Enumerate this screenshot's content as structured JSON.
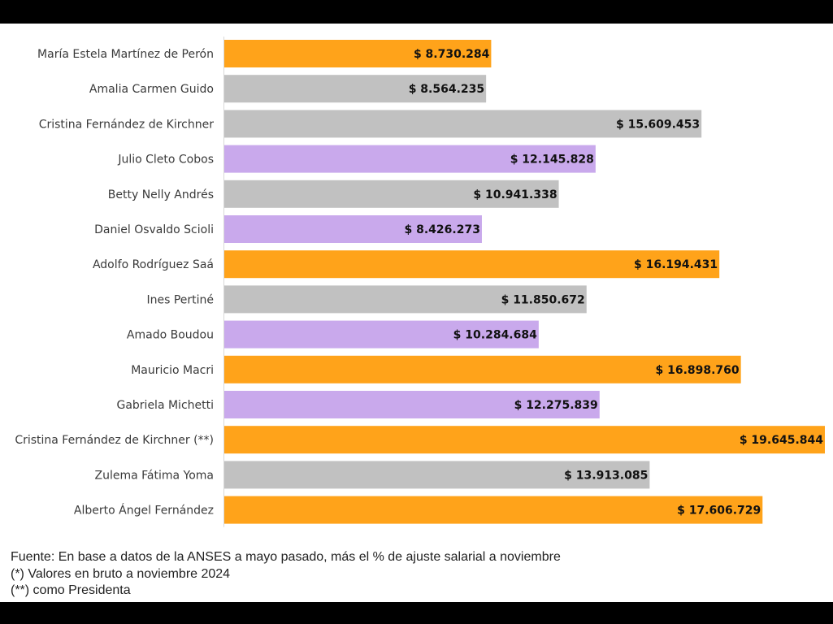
{
  "colors": {
    "orange": "#ffa31a",
    "gray": "#c1c1c1",
    "violet": "#c9a9ec"
  },
  "chart_data": {
    "type": "bar",
    "orientation": "horizontal",
    "title": "",
    "xlabel": "",
    "ylabel": "",
    "grid": false,
    "legend": "none",
    "xlim": [
      0,
      19645844
    ],
    "categories": [
      "María Estela Martínez de Perón",
      "Amalia Carmen Guido",
      "Cristina Fernández de Kirchner",
      "Julio Cleto Cobos",
      "Betty Nelly Andrés",
      "Daniel Osvaldo Scioli",
      "Adolfo Rodríguez Saá",
      "Ines Pertiné",
      "Amado Boudou",
      "Mauricio Macri",
      "Gabriela Michetti",
      "Cristina Fernández de Kirchner (**)",
      "Zulema Fátima Yoma",
      "Alberto Ángel Fernández"
    ],
    "values": [
      8730284,
      8564235,
      15609453,
      12145828,
      10941338,
      8426273,
      16194431,
      11850672,
      10284684,
      16898760,
      12275839,
      19645844,
      13913085,
      17606729
    ],
    "value_labels": [
      "$ 8.730.284",
      "$ 8.564.235",
      "$ 15.609.453",
      "$ 12.145.828",
      "$ 10.941.338",
      "$ 8.426.273",
      "$ 16.194.431",
      "$ 11.850.672",
      "$ 10.284.684",
      "$ 16.898.760",
      "$ 12.275.839",
      "$ 19.645.844",
      "$ 13.913.085",
      "$ 17.606.729"
    ],
    "bar_colors": [
      "orange",
      "gray",
      "gray",
      "violet",
      "gray",
      "violet",
      "orange",
      "gray",
      "violet",
      "orange",
      "violet",
      "orange",
      "gray",
      "orange"
    ]
  },
  "notes": {
    "source": "Fuente: En base a datos de la ANSES a mayo pasado, más el % de ajuste salarial a noviembre",
    "note_1": "(*) Valores en bruto a noviembre 2024",
    "note_2": "(**) como Presidenta"
  }
}
